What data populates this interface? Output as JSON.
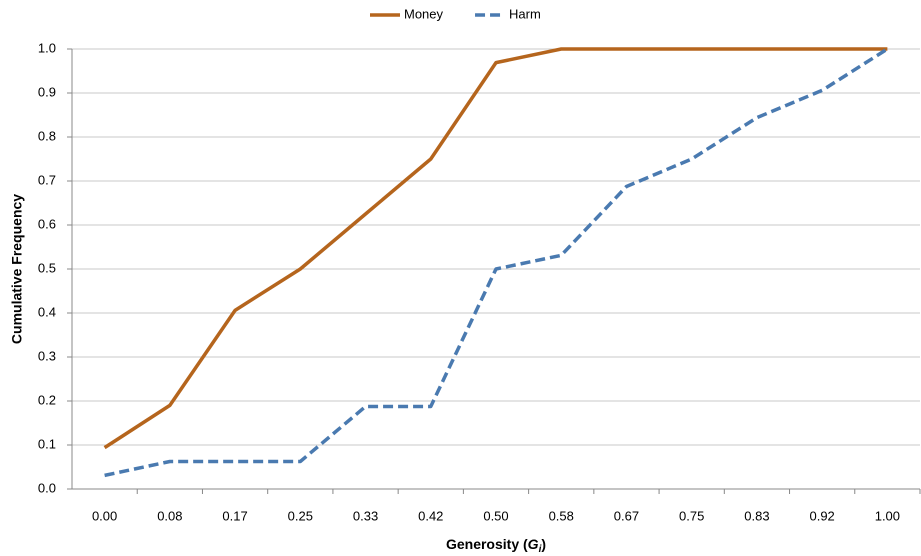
{
  "chart_data": {
    "type": "line",
    "x_label": {
      "text": "Generosity (",
      "symbol": "G",
      "subscript": "i",
      "close": ")"
    },
    "y_label": "Cumulative Frequency",
    "categories": [
      "0.00",
      "0.08",
      "0.17",
      "0.25",
      "0.33",
      "0.42",
      "0.50",
      "0.58",
      "0.67",
      "0.75",
      "0.83",
      "0.92",
      "1.00"
    ],
    "series": [
      {
        "name": "Money",
        "color": "#b5651d",
        "dash": false,
        "values": [
          0.094,
          0.19,
          0.406,
          0.5,
          0.625,
          0.75,
          0.969,
          1.0,
          1.0,
          1.0,
          1.0,
          1.0,
          1.0
        ]
      },
      {
        "name": "Harm",
        "color": "#4a7ab0",
        "dash": true,
        "values": [
          0.031,
          0.0625,
          0.0625,
          0.0625,
          0.1875,
          0.1875,
          0.5,
          0.531,
          0.6875,
          0.75,
          0.844,
          0.906,
          1.0
        ]
      }
    ],
    "ylim": [
      0,
      1
    ],
    "yticks": [
      {
        "value": 0,
        "label": "0.0"
      },
      0.1,
      0.2,
      0.3,
      0.4,
      0.5,
      0.6,
      0.7,
      0.8,
      0.9,
      {
        "value": 1,
        "label": "1.0"
      }
    ],
    "grid": true,
    "legend": "top"
  }
}
